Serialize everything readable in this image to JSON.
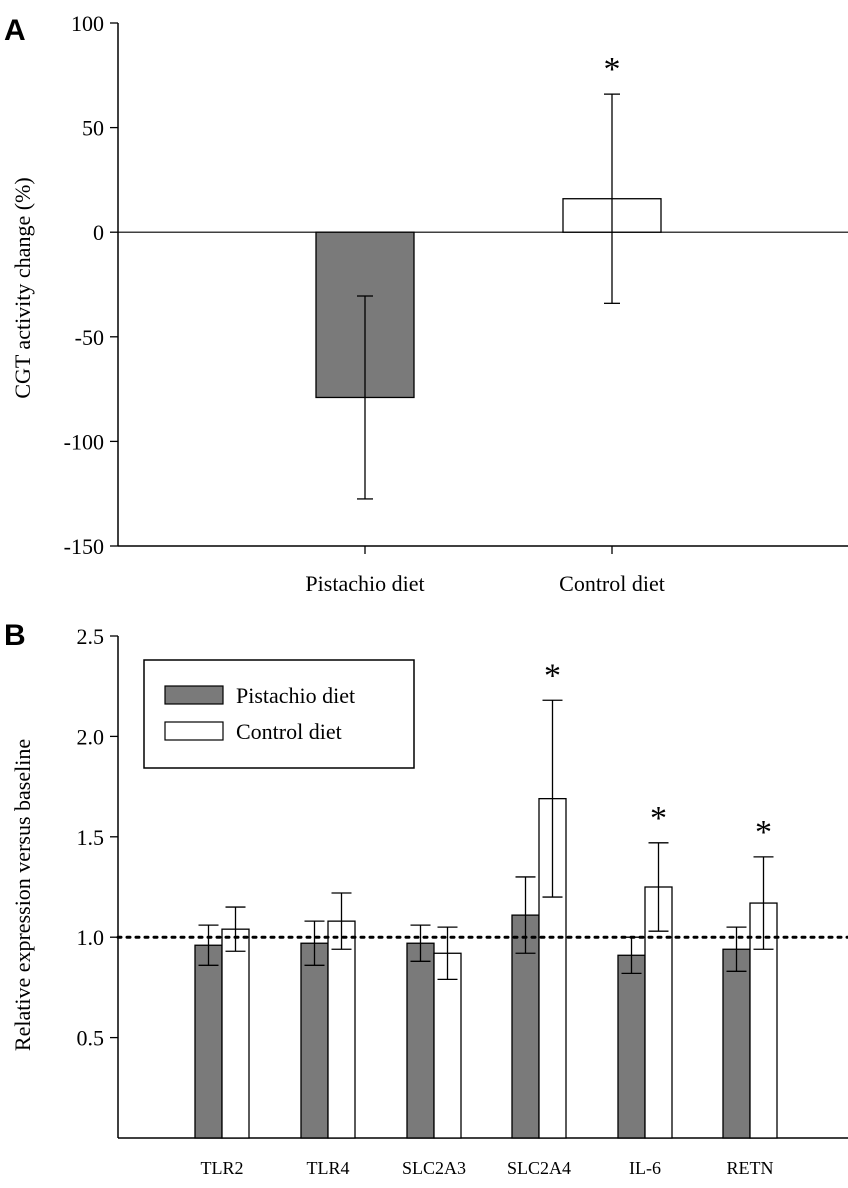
{
  "colors": {
    "pistachio": "#7a7a7a",
    "control": "#ffffff",
    "stroke": "#000000"
  },
  "chart_data": [
    {
      "panel": "A",
      "type": "bar",
      "ylabel": "CGT activity change (%)",
      "ylim": [
        -150,
        100
      ],
      "yticks": [
        "100",
        "50",
        "0",
        "-50",
        "-100",
        "-150"
      ],
      "ytick_values": [
        100,
        50,
        0,
        -50,
        -100,
        -150
      ],
      "categories": [
        "Pistachio diet",
        "Control diet"
      ],
      "values": [
        -79,
        16
      ],
      "errors": [
        48.5,
        50
      ],
      "significance": [
        "",
        "*"
      ],
      "grid": false
    },
    {
      "panel": "B",
      "type": "bar",
      "ylabel": "Relative expression versus baseline",
      "ylim": [
        0,
        2.5
      ],
      "yticks": [
        "2.5",
        "2.0",
        "1.5",
        "1.0",
        "0.5"
      ],
      "ytick_values": [
        2.5,
        2.0,
        1.5,
        1.0,
        0.5
      ],
      "baseline": 1.0,
      "categories": [
        "TLR2",
        "TLR4",
        "SLC2A3",
        "SLC2A4",
        "IL-6",
        "RETN"
      ],
      "series": [
        {
          "name": "Pistachio diet",
          "values": [
            0.96,
            0.97,
            0.97,
            1.11,
            0.91,
            0.94
          ],
          "errors": [
            0.1,
            0.11,
            0.09,
            0.19,
            0.09,
            0.11
          ]
        },
        {
          "name": "Control diet",
          "values": [
            1.04,
            1.08,
            0.92,
            1.69,
            1.25,
            1.17
          ],
          "errors": [
            0.11,
            0.14,
            0.13,
            0.49,
            0.22,
            0.23
          ]
        }
      ],
      "significance": [
        "",
        "",
        "",
        "*",
        "*",
        "*"
      ],
      "legend_position": "top-left",
      "grid": false
    }
  ]
}
